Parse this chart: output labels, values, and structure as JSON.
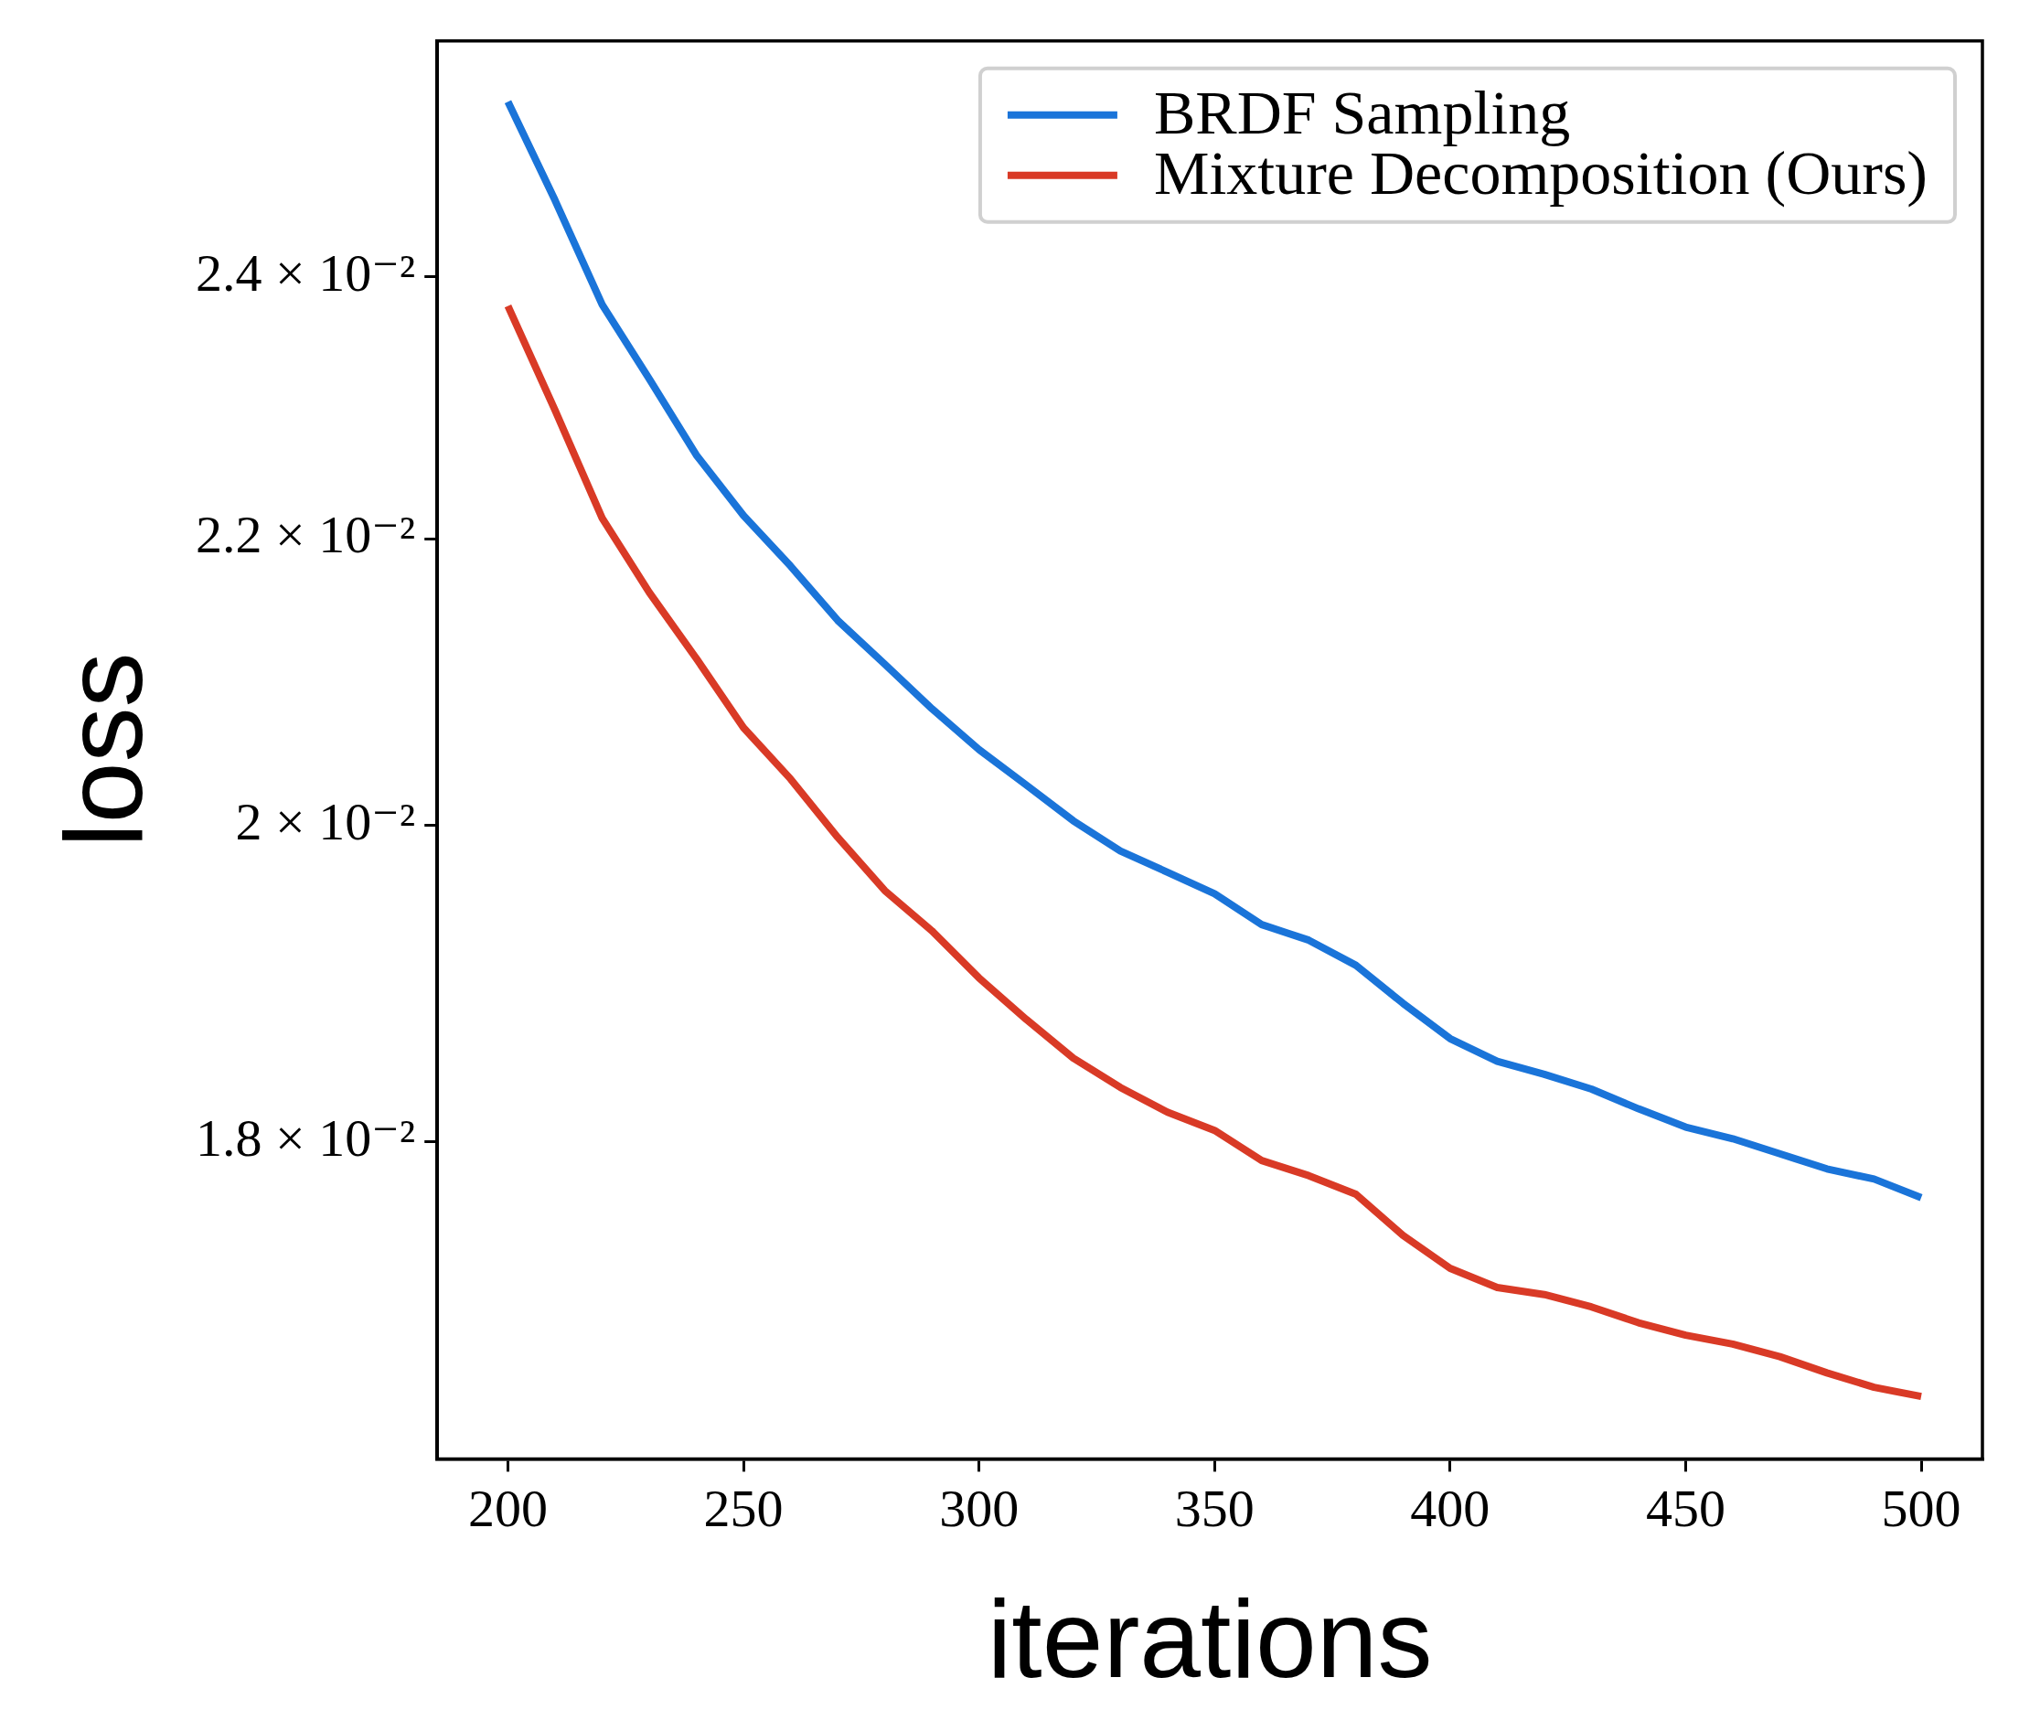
{
  "chart_data": {
    "type": "line",
    "xlabel": "iterations",
    "ylabel": "loss",
    "log": "y",
    "grid": false,
    "legend": "top right",
    "marker": "none",
    "line_style": "solid",
    "x": [
      200,
      210,
      220,
      230,
      240,
      250,
      260,
      270,
      280,
      290,
      300,
      310,
      320,
      330,
      340,
      350,
      360,
      370,
      380,
      390,
      400,
      410,
      420,
      430,
      440,
      450,
      460,
      470,
      480,
      490,
      500
    ],
    "xlim": [
      185,
      513
    ],
    "xticks": [
      200,
      250,
      300,
      350,
      400,
      450,
      500
    ],
    "ylim": [
      0.0162,
      0.02596
    ],
    "yticks": [
      {
        "value": 0.018,
        "label": "1.8 × 10⁻²"
      },
      {
        "value": 0.02,
        "label": "2 × 10⁻²"
      },
      {
        "value": 0.022,
        "label": "2.2 × 10⁻²"
      },
      {
        "value": 0.024,
        "label": "2.4 × 10⁻²"
      }
    ],
    "series": [
      {
        "name": "BRDF Sampling",
        "color": "#1a74d9",
        "values": [
          0.02544,
          0.02462,
          0.02378,
          0.0232,
          0.02262,
          0.02217,
          0.0218,
          0.02141,
          0.0211,
          0.02079,
          0.02051,
          0.02027,
          0.02003,
          0.01983,
          0.01969,
          0.01955,
          0.01935,
          0.01925,
          0.01909,
          0.01885,
          0.01863,
          0.01849,
          0.01841,
          0.01832,
          0.0182,
          0.01809,
          0.01802,
          0.01793,
          0.01784,
          0.01778,
          0.01767
        ]
      },
      {
        "name": "Mixture Decomposition (Ours)",
        "color": "#d93a26",
        "values": [
          0.02377,
          0.02296,
          0.02215,
          0.02161,
          0.02114,
          0.02066,
          0.02031,
          0.01992,
          0.01957,
          0.01931,
          0.01901,
          0.01875,
          0.01851,
          0.01833,
          0.01818,
          0.01807,
          0.01789,
          0.0178,
          0.01769,
          0.01745,
          0.01726,
          0.01715,
          0.01711,
          0.01704,
          0.01695,
          0.01688,
          0.01683,
          0.01676,
          0.01667,
          0.01659,
          0.01654
        ]
      }
    ]
  }
}
